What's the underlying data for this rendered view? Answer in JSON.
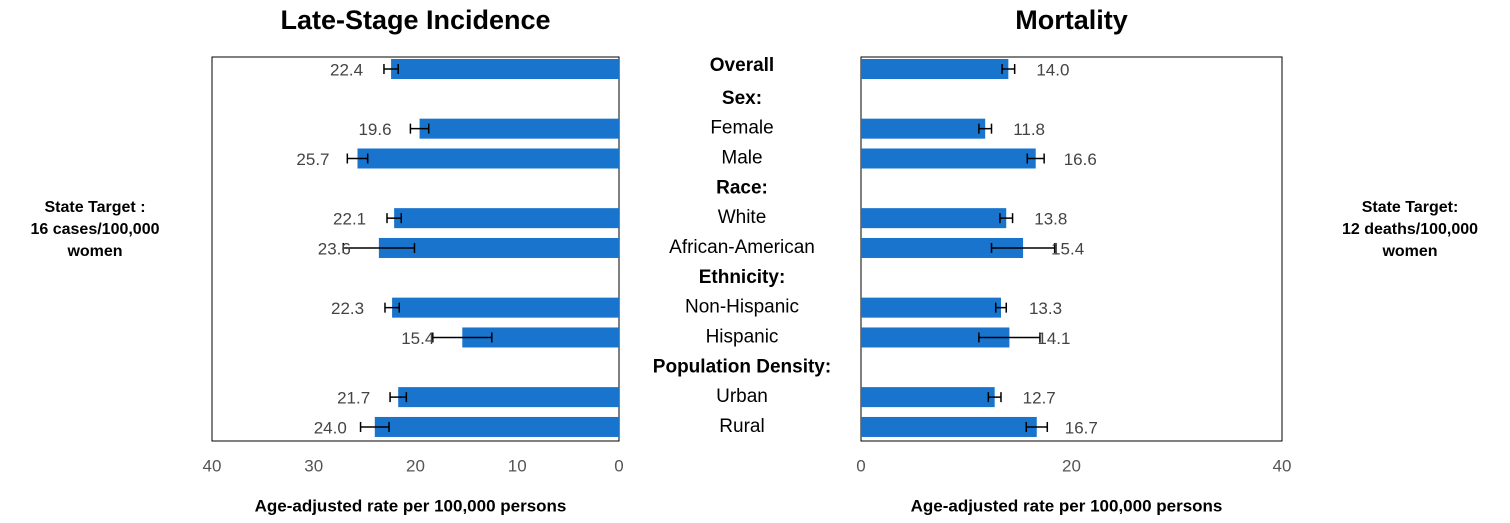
{
  "chart_data": [
    {
      "type": "bar",
      "orientation": "horizontal",
      "title": "Late-Stage Incidence",
      "categories": [
        "Overall",
        "Sex:",
        "Female",
        "Male",
        "Race:",
        "White",
        "African-American",
        "Ethnicity:",
        "Non-Hispanic",
        "Hispanic",
        "Population Density:",
        "Urban",
        "Rural"
      ],
      "values": [
        22.4,
        null,
        19.6,
        25.7,
        null,
        22.1,
        23.6,
        null,
        22.3,
        15.4,
        null,
        21.7,
        24.0
      ],
      "value_labels": [
        "22.4",
        null,
        "19.6",
        "25.7",
        null,
        "22.1",
        "23.6",
        null,
        "22.3",
        "15.4",
        null,
        "21.7",
        "24.0"
      ],
      "errors": [
        0.7,
        null,
        0.9,
        1.0,
        null,
        0.7,
        3.5,
        null,
        0.7,
        2.9,
        null,
        0.8,
        1.4
      ],
      "color": "#1874cd",
      "xlim": [
        0,
        40
      ],
      "x_reversed": true,
      "xticks": [
        0,
        10,
        20,
        30,
        40
      ],
      "xlabel": "Age-adjusted rate per 100,000 persons",
      "annotation": [
        "State Target :",
        "16 cases/100,000",
        "women"
      ]
    },
    {
      "type": "bar",
      "orientation": "horizontal",
      "title": "Mortality",
      "values": [
        14.0,
        null,
        11.8,
        16.6,
        null,
        13.8,
        15.4,
        null,
        13.3,
        14.1,
        null,
        12.7,
        16.7
      ],
      "value_labels": [
        "14.0",
        null,
        "11.8",
        "16.6",
        null,
        "13.8",
        "15.4",
        null,
        "13.3",
        "14.1",
        null,
        "12.7",
        "16.7"
      ],
      "errors": [
        0.6,
        null,
        0.6,
        0.8,
        null,
        0.6,
        3.0,
        null,
        0.5,
        2.9,
        null,
        0.6,
        1.0
      ],
      "color": "#1874cd",
      "xlim": [
        0,
        40
      ],
      "x_reversed": false,
      "xticks": [
        0,
        20,
        40
      ],
      "xlabel": "Age-adjusted rate per 100,000 persons",
      "annotation": [
        "State Target:",
        "12 deaths/100,000",
        "women"
      ]
    }
  ]
}
